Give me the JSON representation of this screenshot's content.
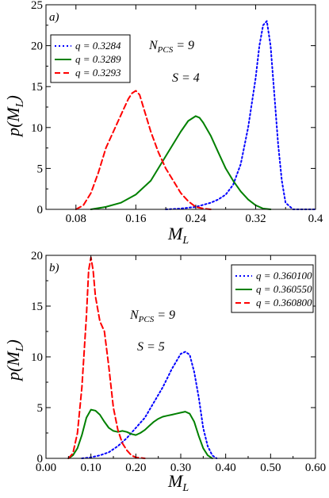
{
  "chart_data": [
    {
      "type": "line",
      "panel_label": "a)",
      "xlabel_main": "M",
      "xlabel_sub": "L",
      "ylabel_text": "p(M",
      "ylabel_sub": "L",
      "ylabel_close": ")",
      "xlim": [
        0.04,
        0.4
      ],
      "ylim": [
        0,
        25
      ],
      "xticks": [
        "0.08",
        "0.16",
        "0.24",
        "0.32",
        "0.4"
      ],
      "xtick_values": [
        0.08,
        0.16,
        0.24,
        0.32,
        0.4
      ],
      "yticks": [
        "0",
        "5",
        "10",
        "15",
        "20",
        "25"
      ],
      "ytick_values": [
        0,
        5,
        10,
        15,
        20,
        25
      ],
      "annotation_npcs": "N",
      "annotation_npcs_sub": "PCS",
      "annotation_npcs_val": " = 9",
      "annotation_s": "S = 4",
      "legend_position": "top-left",
      "series": [
        {
          "name": "q = 0.3284",
          "color": "#0000ff",
          "dash": "dotted",
          "x": [
            0.2,
            0.22,
            0.24,
            0.26,
            0.27,
            0.28,
            0.29,
            0.3,
            0.31,
            0.32,
            0.325,
            0.33,
            0.335,
            0.34,
            0.345,
            0.35,
            0.355,
            0.36,
            0.37,
            0.4
          ],
          "y": [
            0.0,
            0.1,
            0.3,
            0.8,
            1.2,
            1.8,
            3.0,
            5.5,
            10.0,
            16.0,
            20.0,
            22.5,
            23.0,
            20.0,
            14.0,
            8.0,
            3.5,
            0.8,
            0.0,
            0.0
          ]
        },
        {
          "name": "q = 0.3289",
          "color": "#008000",
          "dash": "solid",
          "x": [
            0.1,
            0.12,
            0.14,
            0.16,
            0.18,
            0.2,
            0.21,
            0.22,
            0.23,
            0.24,
            0.245,
            0.25,
            0.26,
            0.27,
            0.28,
            0.29,
            0.3,
            0.31,
            0.32,
            0.33,
            0.34
          ],
          "y": [
            0.0,
            0.3,
            0.8,
            1.8,
            3.5,
            6.5,
            8.0,
            9.5,
            10.8,
            11.4,
            11.2,
            10.6,
            9.0,
            7.0,
            5.0,
            3.5,
            2.2,
            1.2,
            0.5,
            0.1,
            0.0
          ]
        },
        {
          "name": "q = 0.3293",
          "color": "#ff0000",
          "dash": "dashed",
          "x": [
            0.08,
            0.09,
            0.1,
            0.11,
            0.12,
            0.13,
            0.14,
            0.15,
            0.155,
            0.16,
            0.165,
            0.17,
            0.18,
            0.19,
            0.2,
            0.21,
            0.22,
            0.23,
            0.24,
            0.25,
            0.26
          ],
          "y": [
            0.0,
            0.5,
            2.0,
            4.5,
            7.5,
            9.5,
            11.5,
            13.5,
            14.2,
            14.5,
            14.0,
            12.5,
            9.5,
            7.0,
            5.0,
            3.5,
            2.0,
            1.0,
            0.3,
            0.1,
            0.0
          ]
        }
      ]
    },
    {
      "type": "line",
      "panel_label": "b)",
      "xlabel_main": "M",
      "xlabel_sub": "L",
      "ylabel_text": "p(M",
      "ylabel_sub": "L",
      "ylabel_close": ")",
      "xlim": [
        0.0,
        0.6
      ],
      "ylim": [
        0,
        20
      ],
      "xticks": [
        "0.00",
        "0.10",
        "0.20",
        "0.30",
        "0.40",
        "0.50",
        "0.60"
      ],
      "xtick_values": [
        0.0,
        0.1,
        0.2,
        0.3,
        0.4,
        0.5,
        0.6
      ],
      "yticks": [
        "0",
        "5",
        "10",
        "15",
        "20"
      ],
      "ytick_values": [
        0,
        5,
        10,
        15,
        20
      ],
      "annotation_npcs": "N",
      "annotation_npcs_sub": "PCS",
      "annotation_npcs_val": " = 9",
      "annotation_s": "S = 5",
      "legend_position": "top-right",
      "series": [
        {
          "name": "q = 0.360100",
          "color": "#0000ff",
          "dash": "dotted",
          "x": [
            0.08,
            0.1,
            0.12,
            0.14,
            0.16,
            0.18,
            0.2,
            0.22,
            0.24,
            0.26,
            0.28,
            0.3,
            0.31,
            0.32,
            0.33,
            0.34,
            0.35,
            0.36,
            0.37,
            0.38
          ],
          "y": [
            0.0,
            0.1,
            0.3,
            0.6,
            1.2,
            2.0,
            3.0,
            4.0,
            5.5,
            7.0,
            8.8,
            10.3,
            10.5,
            10.2,
            8.5,
            6.0,
            3.0,
            1.2,
            0.3,
            0.0
          ]
        },
        {
          "name": "q = 0.360550",
          "color": "#008000",
          "dash": "solid",
          "x": [
            0.05,
            0.06,
            0.07,
            0.08,
            0.09,
            0.1,
            0.11,
            0.12,
            0.13,
            0.14,
            0.15,
            0.16,
            0.17,
            0.18,
            0.19,
            0.2,
            0.21,
            0.22,
            0.23,
            0.24,
            0.25,
            0.26,
            0.27,
            0.28,
            0.29,
            0.3,
            0.31,
            0.32,
            0.33,
            0.34,
            0.35,
            0.36,
            0.37
          ],
          "y": [
            0.0,
            0.3,
            1.0,
            2.3,
            4.0,
            4.8,
            4.7,
            4.3,
            3.6,
            3.0,
            2.7,
            2.6,
            2.7,
            2.6,
            2.4,
            2.3,
            2.5,
            2.8,
            3.2,
            3.6,
            3.9,
            4.1,
            4.2,
            4.3,
            4.4,
            4.5,
            4.6,
            4.4,
            3.6,
            2.2,
            1.0,
            0.3,
            0.0
          ]
        },
        {
          "name": "q = 0.360800",
          "color": "#ff0000",
          "dash": "dashed",
          "x": [
            0.05,
            0.06,
            0.07,
            0.08,
            0.09,
            0.095,
            0.1,
            0.105,
            0.11,
            0.12,
            0.13,
            0.14,
            0.15,
            0.16,
            0.17,
            0.18,
            0.19,
            0.2,
            0.22
          ],
          "y": [
            0.0,
            0.5,
            2.5,
            7.0,
            14.0,
            18.5,
            19.8,
            18.5,
            16.0,
            13.5,
            12.5,
            9.0,
            5.0,
            2.8,
            1.5,
            0.8,
            0.3,
            0.1,
            0.0
          ]
        }
      ]
    }
  ]
}
